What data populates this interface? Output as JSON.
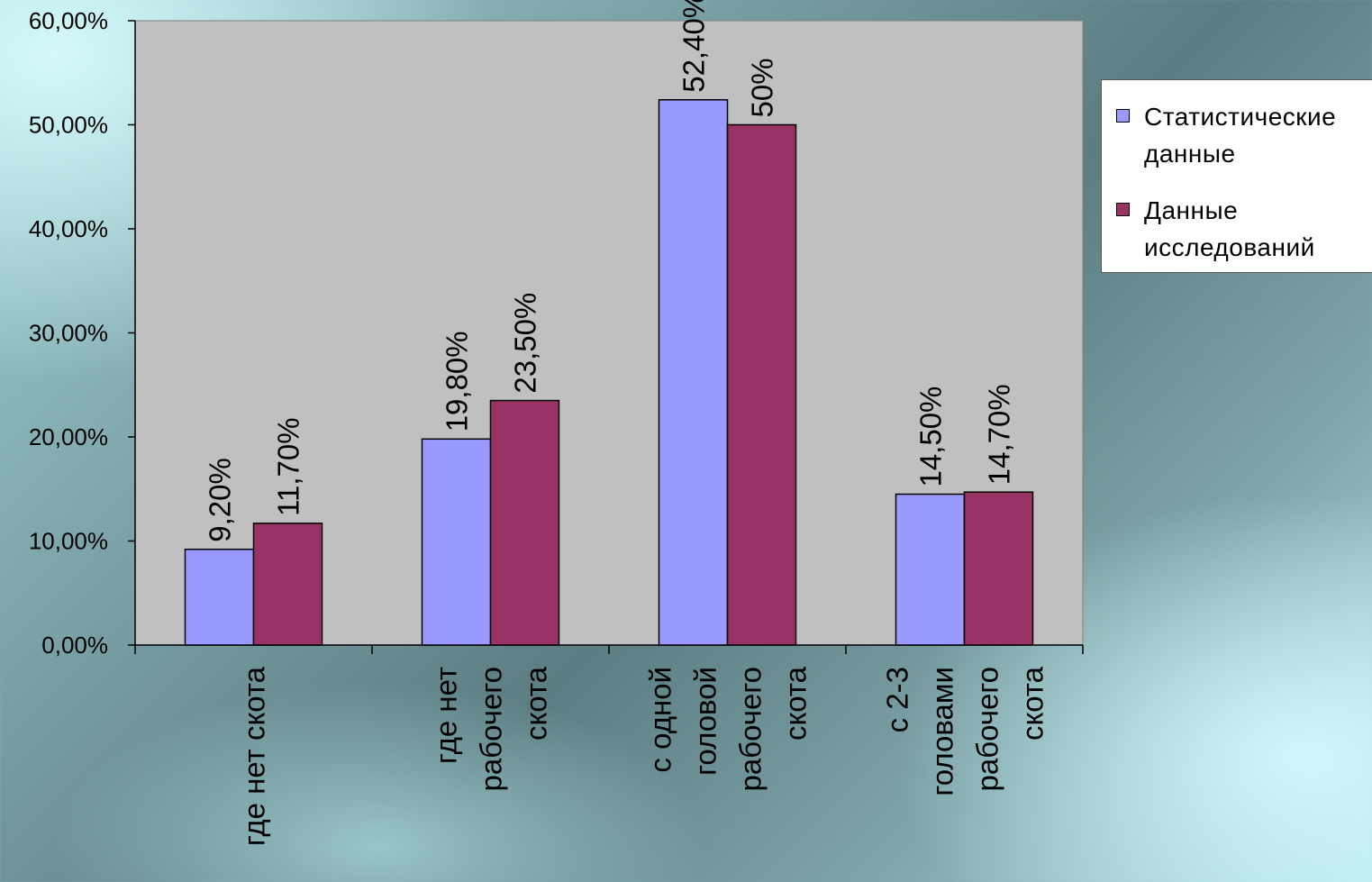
{
  "colors": {
    "plot_area": "#c0c0c0",
    "series_1": "#9999ff",
    "series_2": "#993366",
    "outline": "#000000"
  },
  "chart_data": {
    "type": "bar",
    "categories": [
      [
        "где нет скота"
      ],
      [
        "где нет",
        "рабочего",
        "скота"
      ],
      [
        "с одной",
        "головой",
        "рабочего",
        "скота"
      ],
      [
        "с 2-3",
        "головами",
        "рабочего",
        "скота"
      ]
    ],
    "series": [
      {
        "name": "Статистические данные",
        "values": [
          9.2,
          19.8,
          52.4,
          14.5
        ],
        "labels": [
          "9,20%",
          "19,80%",
          "52,40%",
          "14,50%"
        ]
      },
      {
        "name": "Данные исследований",
        "values": [
          11.7,
          23.5,
          50,
          14.7
        ],
        "labels": [
          "11,70%",
          "23,50%",
          "50%",
          "14,70%"
        ]
      }
    ],
    "ylim": [
      0,
      60
    ],
    "yticks": [
      0,
      10,
      20,
      30,
      40,
      50,
      60
    ],
    "ytick_labels": [
      "0,00%",
      "10,00%",
      "20,00%",
      "30,00%",
      "40,00%",
      "50,00%",
      "60,00%"
    ],
    "grid": false,
    "legend_position": "right",
    "title": "",
    "xlabel": "",
    "ylabel": ""
  },
  "legend": {
    "items": [
      {
        "lines": [
          "Статистические",
          "данные"
        ]
      },
      {
        "lines": [
          "Данные",
          "исследований"
        ]
      }
    ]
  }
}
